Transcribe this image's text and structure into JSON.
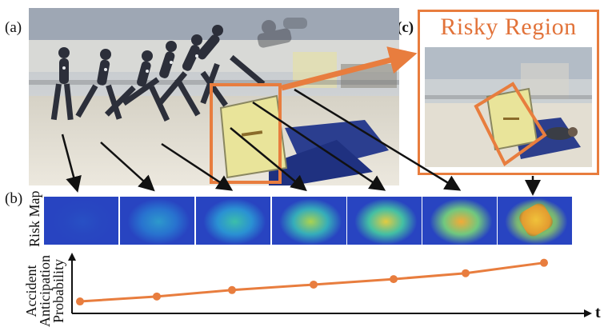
{
  "panels": {
    "a": "(a)",
    "b": "(b)",
    "c": "(c)"
  },
  "risky_region_title": "Risky Region",
  "risk_map_label": "Risk Map",
  "probability_label_lines": [
    "Accident",
    "Anticipation",
    "Probability"
  ],
  "time_axis_label": "t",
  "colors": {
    "accent": "#e87d3e",
    "arrow": "#111111",
    "heatmap_cold": "#1f2fb8",
    "heatmap_hot": "#f2c93a"
  },
  "probability_series": [
    0.08,
    0.18,
    0.31,
    0.42,
    0.53,
    0.65,
    0.86
  ],
  "heatmap_intensity": [
    0.05,
    0.25,
    0.4,
    0.6,
    0.75,
    0.9,
    1.0
  ]
}
